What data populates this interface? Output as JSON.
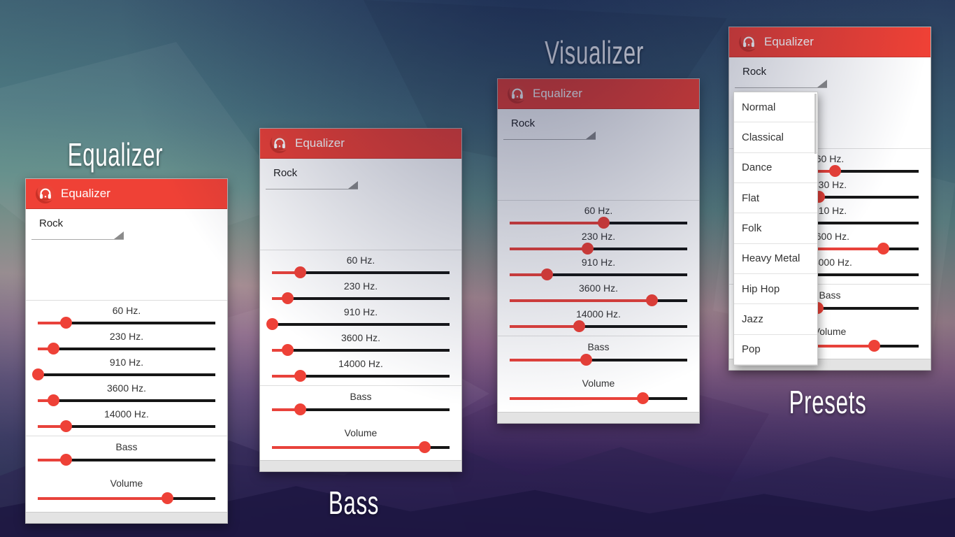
{
  "shared": {
    "header_title": "Equalizer",
    "preset_value": "Rock",
    "band_labels": [
      "60 Hz.",
      "230 Hz.",
      "910 Hz.",
      "3600 Hz.",
      "14000 Hz."
    ],
    "bass_label": "Bass",
    "volume_label": "Volume"
  },
  "captions": {
    "equalizer": "Equalizer",
    "bass": "Bass",
    "visualizer": "Visualizer",
    "presets": "Presets"
  },
  "colors": {
    "accent_red": "#EF4136",
    "slider_track": "#161616",
    "slider_fill": "#E8423B",
    "footer_gray": "#e3e3e3"
  },
  "panels": [
    {
      "name": "equalizer-demo",
      "waveform_color": "#38289D",
      "waveform_style": "noisy",
      "band_values": [
        16,
        9,
        0,
        9,
        16
      ],
      "bass_value": 16,
      "volume_value": 73,
      "dropdown_open": false
    },
    {
      "name": "bass-demo",
      "waveform_color": "#3FCB3A",
      "waveform_style": "smooth",
      "band_values": [
        16,
        9,
        0,
        9,
        16
      ],
      "bass_value": 16,
      "volume_value": 86,
      "dropdown_open": false
    },
    {
      "name": "visualizer-demo",
      "waveform_color": "#2FD0B4",
      "waveform_style": "zigzag",
      "band_values": [
        53,
        44,
        21,
        80,
        39
      ],
      "bass_value": 43,
      "volume_value": 75,
      "dropdown_open": false
    },
    {
      "name": "presets-demo",
      "waveform_color": "#A3812F",
      "waveform_style": "jagged",
      "band_values": [
        53,
        44,
        21,
        80,
        39
      ],
      "bass_value": 43,
      "volume_value": 75,
      "dropdown_open": true
    }
  ],
  "preset_options": [
    "Normal",
    "Classical",
    "Dance",
    "Flat",
    "Folk",
    "Heavy Metal",
    "Hip Hop",
    "Jazz",
    "Pop"
  ]
}
